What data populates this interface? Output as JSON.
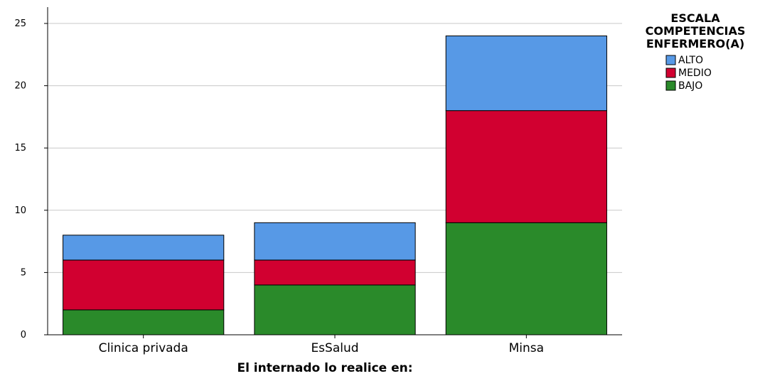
{
  "chart_data": {
    "type": "bar",
    "stacked": true,
    "categories": [
      "Clinica privada",
      "EsSalud",
      "Minsa"
    ],
    "series": [
      {
        "name": "BAJO",
        "values": [
          2,
          4,
          9
        ],
        "color": "#2a8a2a"
      },
      {
        "name": "MEDIO",
        "values": [
          4,
          2,
          9
        ],
        "color": "#d10030"
      },
      {
        "name": "ALTO",
        "values": [
          2,
          3,
          6
        ],
        "color": "#5799e6"
      }
    ],
    "xlabel": "El internado lo realice en:",
    "ylabel": "",
    "ylim": [
      0,
      25
    ],
    "yticks": [
      0,
      5,
      10,
      15,
      20,
      25
    ],
    "grid": true,
    "legend": {
      "title_lines": [
        "ESCALA",
        "COMPETENCIAS",
        "ENFERMERO(A)"
      ],
      "entries": [
        "ALTO",
        "MEDIO",
        "BAJO"
      ],
      "placement": "top-right"
    }
  }
}
